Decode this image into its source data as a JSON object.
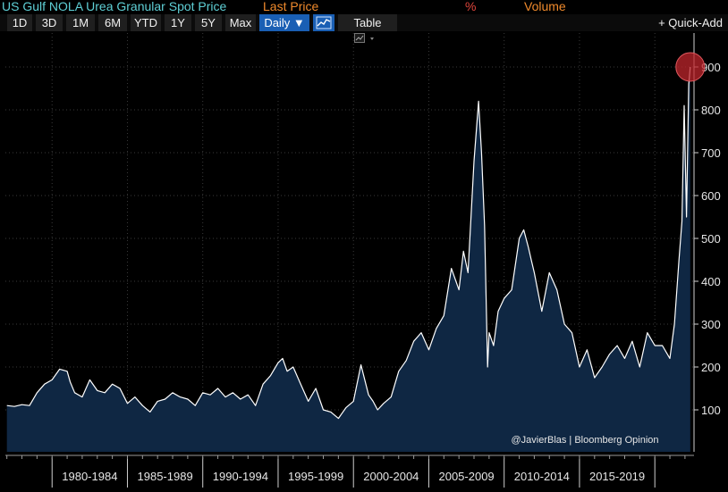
{
  "legend": {
    "title": "US Gulf NOLA Urea Granular Spot Price",
    "last_price": "Last Price",
    "percent": "%",
    "volume": "Volume",
    "colors": {
      "title": "#5fd0d6",
      "last_price": "#f08a2c",
      "percent": "#e0463c",
      "volume": "#f08a2c"
    }
  },
  "toolbar": {
    "ranges": [
      "1D",
      "3D",
      "1M",
      "6M",
      "YTD",
      "1Y",
      "5Y",
      "Max"
    ],
    "frequency": "Daily ▼",
    "chart_icon": "line-chart-icon",
    "table_label": "Table",
    "quick_add": "+ Quick-Add"
  },
  "credit": "@JavierBlas | Bloomberg Opinion",
  "chart_data": {
    "type": "area",
    "title": "US Gulf NOLA Urea Granular Spot Price",
    "series": [
      {
        "name": "Last Price",
        "x": [
          1977.0,
          1977.5,
          1978.0,
          1978.5,
          1979.0,
          1979.5,
          1980.0,
          1980.5,
          1981.0,
          1981.2,
          1981.5,
          1982.0,
          1982.5,
          1983.0,
          1983.5,
          1984.0,
          1984.5,
          1985.0,
          1985.5,
          1986.0,
          1986.5,
          1987.0,
          1987.5,
          1988.0,
          1988.5,
          1989.0,
          1989.5,
          1990.0,
          1990.5,
          1991.0,
          1991.5,
          1992.0,
          1992.5,
          1993.0,
          1993.5,
          1994.0,
          1994.5,
          1995.0,
          1995.3,
          1995.6,
          1996.0,
          1996.5,
          1997.0,
          1997.5,
          1998.0,
          1998.5,
          1999.0,
          1999.5,
          2000.0,
          2000.5,
          2001.0,
          2001.3,
          2001.6,
          2002.0,
          2002.5,
          2003.0,
          2003.5,
          2004.0,
          2004.5,
          2005.0,
          2005.5,
          2006.0,
          2006.5,
          2007.0,
          2007.3,
          2007.6,
          2008.0,
          2008.3,
          2008.5,
          2008.7,
          2008.9,
          2009.0,
          2009.3,
          2009.6,
          2010.0,
          2010.5,
          2011.0,
          2011.3,
          2011.6,
          2011.8,
          2012.0,
          2012.5,
          2013.0,
          2013.5,
          2014.0,
          2014.5,
          2015.0,
          2015.5,
          2016.0,
          2016.5,
          2017.0,
          2017.5,
          2018.0,
          2018.5,
          2019.0,
          2019.5,
          2020.0,
          2020.5,
          2021.0,
          2021.3,
          2021.6,
          2021.8,
          2021.95,
          2022.1,
          2022.25,
          2022.35
        ],
        "values": [
          110,
          108,
          112,
          110,
          140,
          160,
          170,
          195,
          190,
          165,
          140,
          130,
          170,
          145,
          140,
          160,
          150,
          115,
          130,
          110,
          95,
          120,
          125,
          140,
          130,
          125,
          110,
          140,
          135,
          150,
          130,
          140,
          125,
          135,
          110,
          160,
          180,
          210,
          220,
          190,
          200,
          160,
          120,
          150,
          100,
          95,
          80,
          105,
          120,
          205,
          135,
          120,
          100,
          115,
          130,
          190,
          215,
          260,
          280,
          240,
          290,
          320,
          430,
          380,
          470,
          420,
          680,
          820,
          700,
          530,
          200,
          280,
          250,
          330,
          360,
          380,
          500,
          520,
          480,
          450,
          420,
          330,
          420,
          380,
          300,
          280,
          200,
          240,
          175,
          200,
          230,
          250,
          220,
          260,
          200,
          280,
          250,
          250,
          220,
          300,
          450,
          540,
          810,
          550,
          860,
          900
        ]
      }
    ],
    "yticks": [
      100,
      200,
      300,
      400,
      500,
      600,
      700,
      800,
      900
    ],
    "ylim": [
      0,
      950
    ],
    "xlim": [
      1976.9,
      2022.6
    ],
    "x_category_labels": [
      "1980-1984",
      "1985-1989",
      "1990-1994",
      "1995-1999",
      "2000-2004",
      "2005-2009",
      "2010-2014",
      "2015-2019"
    ],
    "x_category_ranges": [
      [
        1980,
        1985
      ],
      [
        1985,
        1990
      ],
      [
        1990,
        1995
      ],
      [
        1995,
        2000
      ],
      [
        2000,
        2005
      ],
      [
        2005,
        2010
      ],
      [
        2010,
        2015
      ],
      [
        2015,
        2020
      ]
    ],
    "colors": {
      "line": "#ffffff",
      "fill": "#0f2743",
      "grid": "#3a3a3a",
      "marker": "#c0262c"
    },
    "grid": true,
    "highlight_last_point": true
  }
}
